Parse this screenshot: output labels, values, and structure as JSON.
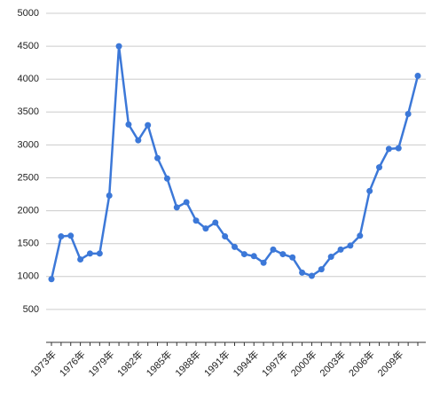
{
  "chart_data": {
    "type": "line",
    "categories": [
      "1973年",
      null,
      null,
      "1976年",
      null,
      null,
      "1979年",
      null,
      null,
      "1982年",
      null,
      null,
      "1985年",
      null,
      null,
      "1988年",
      null,
      null,
      "1991年",
      null,
      null,
      "1994年",
      null,
      null,
      "1997年",
      null,
      null,
      "2000年",
      null,
      null,
      "2003年",
      null,
      null,
      "2006年",
      null,
      null,
      "2009年",
      null,
      null
    ],
    "values": [
      960,
      1610,
      1620,
      1260,
      1350,
      1350,
      2230,
      4500,
      3310,
      3070,
      3300,
      2800,
      2490,
      2050,
      2130,
      1850,
      1730,
      1820,
      1610,
      1450,
      1340,
      1310,
      1210,
      1410,
      1340,
      1290,
      1060,
      1010,
      1110,
      1300,
      1410,
      1470,
      1620,
      2300,
      2660,
      2940,
      2950,
      3470,
      4050
    ],
    "color": "#3c78d8",
    "ylim": [
      0,
      5000
    ],
    "yticks": [
      500,
      1000,
      1500,
      2000,
      2500,
      3000,
      3500,
      4000,
      4500,
      5000
    ],
    "grid": true
  }
}
